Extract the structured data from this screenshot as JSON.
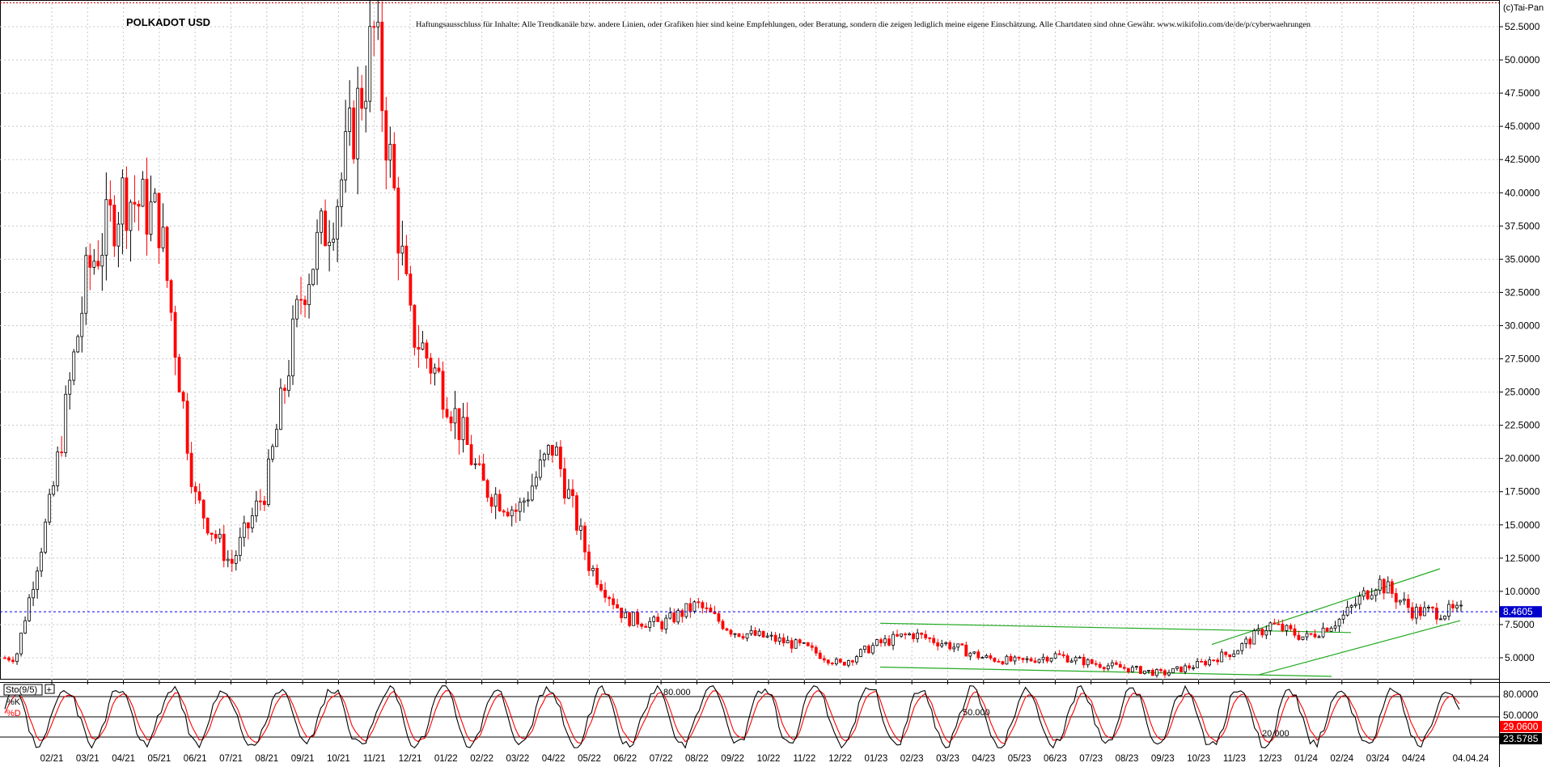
{
  "chart_data": [
    {
      "type": "candlestick",
      "title": "POLKADOT USD",
      "copyright": "(c)Tai-Pan",
      "disclaimer": "Haftungsausschluss für Inhalte: Alle Trendkanäle bzw. andere Linien, oder Grafiken hier sind keine Empfehlungen, oder Beratung, sondern die zeigen lediglich meine eigene Einschätzung. Alle Chartdaten sind ohne Gewähr.  www.wikifolio.com/de/de/p/cyberwaehrungen",
      "ylim": [
        2.5,
        55
      ],
      "y_ticks": [
        "52.5000",
        "50.0000",
        "47.5000",
        "45.0000",
        "42.5000",
        "40.0000",
        "37.5000",
        "35.0000",
        "32.5000",
        "30.0000",
        "27.5000",
        "25.0000",
        "22.5000",
        "20.0000",
        "17.5000",
        "15.0000",
        "12.5000",
        "10.0000",
        "7.5000",
        "5.0000"
      ],
      "x_ticks": [
        "02/21",
        "03/21",
        "04/21",
        "05/21",
        "06/21",
        "07/21",
        "08/21",
        "09/21",
        "10/21",
        "11/21",
        "12/21",
        "01/22",
        "02/22",
        "03/22",
        "04/22",
        "05/22",
        "06/22",
        "07/22",
        "08/22",
        "09/22",
        "10/22",
        "11/22",
        "12/22",
        "01/23",
        "02/23",
        "03/23",
        "04/23",
        "05/23",
        "06/23",
        "07/23",
        "08/23",
        "09/23",
        "10/23",
        "11/23",
        "12/23",
        "01/24",
        "02/24",
        "03/24",
        "04/24",
        "04.04.24"
      ],
      "last_price": "8.4605",
      "series": [
        {
          "x": [
            "01/21",
            "02/21",
            "03/21",
            "04/21",
            "05/21",
            "06/21",
            "07/21",
            "08/21",
            "09/21",
            "10/21",
            "11/21",
            "12/21",
            "01/22",
            "02/22",
            "03/22",
            "04/22",
            "05/22",
            "06/22",
            "07/22",
            "08/22",
            "09/22",
            "10/22",
            "11/22",
            "12/22",
            "01/23",
            "02/23",
            "03/23",
            "04/23",
            "05/23",
            "06/23",
            "07/23",
            "08/23",
            "09/23",
            "10/23",
            "11/23",
            "12/23",
            "01/24",
            "02/24",
            "03/24",
            "04/24"
          ],
          "y": [
            5.0,
            17.0,
            34.0,
            40.0,
            38.0,
            17.0,
            12.0,
            18.0,
            33.0,
            40.0,
            52.0,
            30.0,
            25.0,
            18.0,
            16.0,
            21.0,
            12.0,
            8.0,
            7.5,
            9.0,
            7.0,
            6.5,
            5.8,
            4.5,
            6.0,
            6.8,
            6.0,
            5.0,
            4.7,
            5.2,
            4.6,
            4.2,
            3.8,
            4.5,
            5.5,
            7.5,
            6.5,
            8.0,
            10.8,
            8.46
          ]
        }
      ],
      "trend_lines": "green channel lines",
      "reference_line": "dashed blue line at last price"
    },
    {
      "type": "line",
      "title": "Sto(9/5)",
      "ylim": [
        0,
        100
      ],
      "levels": [
        "80.000",
        "50.000",
        "20.000"
      ],
      "right_ticks": [
        "80.0000",
        "50.0000"
      ],
      "series": [
        {
          "name": "%K",
          "color": "#000000",
          "last": "23.5785"
        },
        {
          "name": "%D",
          "color": "#ff0000",
          "last": "29.0600"
        }
      ]
    }
  ]
}
